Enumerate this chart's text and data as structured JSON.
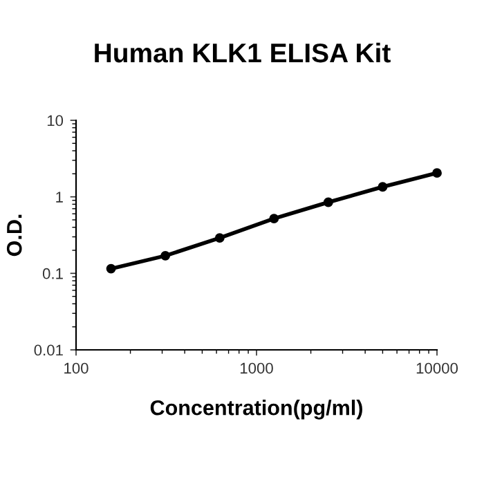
{
  "chart_data": {
    "type": "line",
    "title": "Human KLK1 ELISA Kit",
    "xlabel": "Concentration(pg/ml)",
    "ylabel": "O.D.",
    "log": "xy",
    "x": [
      156.25,
      312.5,
      625,
      1250,
      2500,
      5000,
      10000
    ],
    "series": [
      {
        "color": "#000000",
        "values": [
          0.115,
          0.17,
          0.29,
          0.52,
          0.85,
          1.35,
          2.05
        ]
      }
    ],
    "xlim": [
      100,
      10000
    ],
    "xticks": [
      100,
      1000,
      10000
    ],
    "ylim": [
      0.01,
      10
    ],
    "yticks": [
      0.01,
      0.1,
      1,
      10
    ],
    "grid": false,
    "marker": "circle",
    "line_style": "solid"
  }
}
